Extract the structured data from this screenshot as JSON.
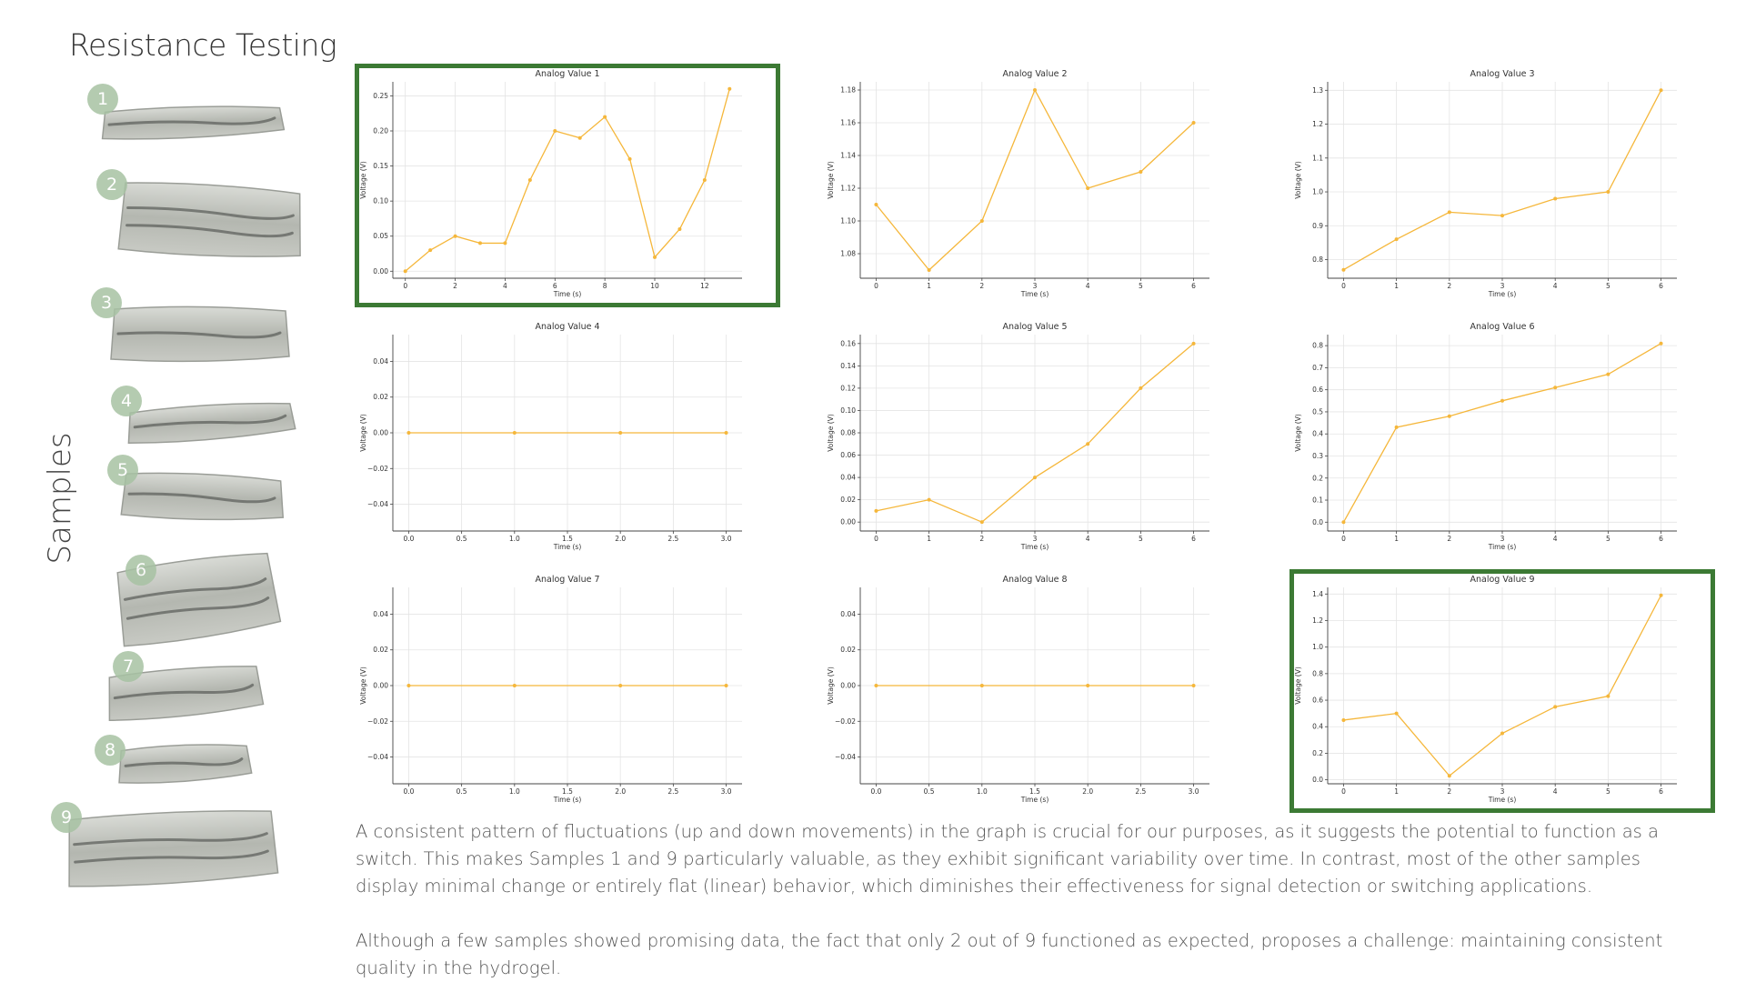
{
  "title": "Resistance Testing",
  "samples_label": "Samples",
  "samples": [
    "1",
    "2",
    "3",
    "4",
    "5",
    "6",
    "7",
    "8",
    "9"
  ],
  "paragraphs": [
    "A consistent pattern of fluctuations (up and down movements) in the graph is crucial for our purposes, as it suggests the potential to function as a switch. This makes Samples 1 and 9 particularly valuable, as they exhibit significant variability over time. In contrast, most of the other samples display minimal change or entirely flat (linear) behavior, which diminishes their effectiveness for signal detection or switching applications.",
    "Although a few samples showed promising data, the fact that only 2 out of 9 functioned as expected, proposes a challenge: maintaining consistent quality in the hydrogel."
  ],
  "colors": {
    "line": "#f5b73b",
    "highlight": "#3c7a34",
    "badge": "#a7c2a3"
  },
  "chart_data": [
    {
      "type": "line",
      "title": "Analog Value 1",
      "xlabel": "Time (s)",
      "ylabel": "Voltage (V)",
      "x": [
        0,
        1,
        2,
        3,
        4,
        5,
        6,
        7,
        8,
        9,
        10,
        11,
        12,
        13
      ],
      "values": [
        0.0,
        0.03,
        0.05,
        0.04,
        0.04,
        0.13,
        0.2,
        0.19,
        0.22,
        0.16,
        0.02,
        0.06,
        0.13,
        0.26
      ],
      "xlim": [
        -0.5,
        13.5
      ],
      "ylim": [
        -0.01,
        0.27
      ],
      "xticks": [
        0,
        2,
        4,
        6,
        8,
        10,
        12
      ],
      "yticks": [
        0.0,
        0.05,
        0.1,
        0.15,
        0.2,
        0.25
      ],
      "xtick_labels": [
        "0",
        "2",
        "4",
        "6",
        "8",
        "10",
        "12"
      ],
      "ytick_labels": [
        "0.00",
        "0.05",
        "0.10",
        "0.15",
        "0.20",
        "0.25"
      ],
      "grid": true,
      "highlighted": true
    },
    {
      "type": "line",
      "title": "Analog Value 2",
      "xlabel": "Time (s)",
      "ylabel": "Voltage (V)",
      "x": [
        0,
        1,
        2,
        3,
        4,
        5,
        6
      ],
      "values": [
        1.11,
        1.07,
        1.1,
        1.18,
        1.12,
        1.13,
        1.16
      ],
      "xlim": [
        -0.3,
        6.3
      ],
      "ylim": [
        1.065,
        1.185
      ],
      "xticks": [
        0,
        1,
        2,
        3,
        4,
        5,
        6
      ],
      "yticks": [
        1.08,
        1.1,
        1.12,
        1.14,
        1.16,
        1.18
      ],
      "xtick_labels": [
        "0",
        "1",
        "2",
        "3",
        "4",
        "5",
        "6"
      ],
      "ytick_labels": [
        "1.08",
        "1.10",
        "1.12",
        "1.14",
        "1.16",
        "1.18"
      ],
      "grid": true,
      "highlighted": false
    },
    {
      "type": "line",
      "title": "Analog Value 3",
      "xlabel": "Time (s)",
      "ylabel": "Voltage (V)",
      "x": [
        0,
        1,
        2,
        3,
        4,
        5,
        6
      ],
      "values": [
        0.77,
        0.86,
        0.94,
        0.93,
        0.98,
        1.0,
        1.3
      ],
      "xlim": [
        -0.3,
        6.3
      ],
      "ylim": [
        0.745,
        1.325
      ],
      "xticks": [
        0,
        1,
        2,
        3,
        4,
        5,
        6
      ],
      "yticks": [
        0.8,
        0.9,
        1.0,
        1.1,
        1.2,
        1.3
      ],
      "xtick_labels": [
        "0",
        "1",
        "2",
        "3",
        "4",
        "5",
        "6"
      ],
      "ytick_labels": [
        "0.8",
        "0.9",
        "1.0",
        "1.1",
        "1.2",
        "1.3"
      ],
      "grid": true,
      "highlighted": false
    },
    {
      "type": "line",
      "title": "Analog Value 4",
      "xlabel": "Time (s)",
      "ylabel": "Voltage (V)",
      "x": [
        0,
        1,
        2,
        3
      ],
      "values": [
        0,
        0,
        0,
        0
      ],
      "xlim": [
        -0.15,
        3.15
      ],
      "ylim": [
        -0.055,
        0.055
      ],
      "xticks": [
        0,
        0.5,
        1,
        1.5,
        2,
        2.5,
        3
      ],
      "yticks": [
        -0.04,
        -0.02,
        0,
        0.02,
        0.04
      ],
      "xtick_labels": [
        "0.0",
        "0.5",
        "1.0",
        "1.5",
        "2.0",
        "2.5",
        "3.0"
      ],
      "ytick_labels": [
        "−0.04",
        "−0.02",
        "0.00",
        "0.02",
        "0.04"
      ],
      "grid": true,
      "highlighted": false
    },
    {
      "type": "line",
      "title": "Analog Value 5",
      "xlabel": "Time (s)",
      "ylabel": "Voltage (V)",
      "x": [
        0,
        1,
        2,
        3,
        4,
        5,
        6
      ],
      "values": [
        0.01,
        0.02,
        0.0,
        0.04,
        0.07,
        0.12,
        0.16
      ],
      "xlim": [
        -0.3,
        6.3
      ],
      "ylim": [
        -0.008,
        0.168
      ],
      "xticks": [
        0,
        1,
        2,
        3,
        4,
        5,
        6
      ],
      "yticks": [
        0.0,
        0.02,
        0.04,
        0.06,
        0.08,
        0.1,
        0.12,
        0.14,
        0.16
      ],
      "xtick_labels": [
        "0",
        "1",
        "2",
        "3",
        "4",
        "5",
        "6"
      ],
      "ytick_labels": [
        "0.00",
        "0.02",
        "0.04",
        "0.06",
        "0.08",
        "0.10",
        "0.12",
        "0.14",
        "0.16"
      ],
      "grid": true,
      "highlighted": false
    },
    {
      "type": "line",
      "title": "Analog Value 6",
      "xlabel": "Time (s)",
      "ylabel": "Voltage (V)",
      "x": [
        0,
        1,
        2,
        3,
        4,
        5,
        6
      ],
      "values": [
        0.0,
        0.43,
        0.48,
        0.55,
        0.61,
        0.67,
        0.81
      ],
      "xlim": [
        -0.3,
        6.3
      ],
      "ylim": [
        -0.04,
        0.85
      ],
      "xticks": [
        0,
        1,
        2,
        3,
        4,
        5,
        6
      ],
      "yticks": [
        0.0,
        0.1,
        0.2,
        0.3,
        0.4,
        0.5,
        0.6,
        0.7,
        0.8
      ],
      "xtick_labels": [
        "0",
        "1",
        "2",
        "3",
        "4",
        "5",
        "6"
      ],
      "ytick_labels": [
        "0.0",
        "0.1",
        "0.2",
        "0.3",
        "0.4",
        "0.5",
        "0.6",
        "0.7",
        "0.8"
      ],
      "grid": true,
      "highlighted": false
    },
    {
      "type": "line",
      "title": "Analog Value 7",
      "xlabel": "Time (s)",
      "ylabel": "Voltage (V)",
      "x": [
        0,
        1,
        2,
        3
      ],
      "values": [
        0,
        0,
        0,
        0
      ],
      "xlim": [
        -0.15,
        3.15
      ],
      "ylim": [
        -0.055,
        0.055
      ],
      "xticks": [
        0,
        0.5,
        1,
        1.5,
        2,
        2.5,
        3
      ],
      "yticks": [
        -0.04,
        -0.02,
        0,
        0.02,
        0.04
      ],
      "xtick_labels": [
        "0.0",
        "0.5",
        "1.0",
        "1.5",
        "2.0",
        "2.5",
        "3.0"
      ],
      "ytick_labels": [
        "−0.04",
        "−0.02",
        "0.00",
        "0.02",
        "0.04"
      ],
      "grid": true,
      "highlighted": false
    },
    {
      "type": "line",
      "title": "Analog Value 8",
      "xlabel": "Time (s)",
      "ylabel": "Voltage (V)",
      "x": [
        0,
        1,
        2,
        3
      ],
      "values": [
        0,
        0,
        0,
        0
      ],
      "xlim": [
        -0.15,
        3.15
      ],
      "ylim": [
        -0.055,
        0.055
      ],
      "xticks": [
        0,
        0.5,
        1,
        1.5,
        2,
        2.5,
        3
      ],
      "yticks": [
        -0.04,
        -0.02,
        0,
        0.02,
        0.04
      ],
      "xtick_labels": [
        "0.0",
        "0.5",
        "1.0",
        "1.5",
        "2.0",
        "2.5",
        "3.0"
      ],
      "ytick_labels": [
        "−0.04",
        "−0.02",
        "0.00",
        "0.02",
        "0.04"
      ],
      "grid": true,
      "highlighted": false
    },
    {
      "type": "line",
      "title": "Analog Value 9",
      "xlabel": "Time (s)",
      "ylabel": "Voltage (V)",
      "x": [
        0,
        1,
        2,
        3,
        4,
        5,
        6
      ],
      "values": [
        0.45,
        0.5,
        0.03,
        0.35,
        0.55,
        0.63,
        1.39
      ],
      "xlim": [
        -0.3,
        6.3
      ],
      "ylim": [
        -0.03,
        1.45
      ],
      "xticks": [
        0,
        1,
        2,
        3,
        4,
        5,
        6
      ],
      "yticks": [
        0.0,
        0.2,
        0.4,
        0.6,
        0.8,
        1.0,
        1.2,
        1.4
      ],
      "xtick_labels": [
        "0",
        "1",
        "2",
        "3",
        "4",
        "5",
        "6"
      ],
      "ytick_labels": [
        "0.0",
        "0.2",
        "0.4",
        "0.6",
        "0.8",
        "1.0",
        "1.2",
        "1.4"
      ],
      "grid": true,
      "highlighted": true
    }
  ]
}
